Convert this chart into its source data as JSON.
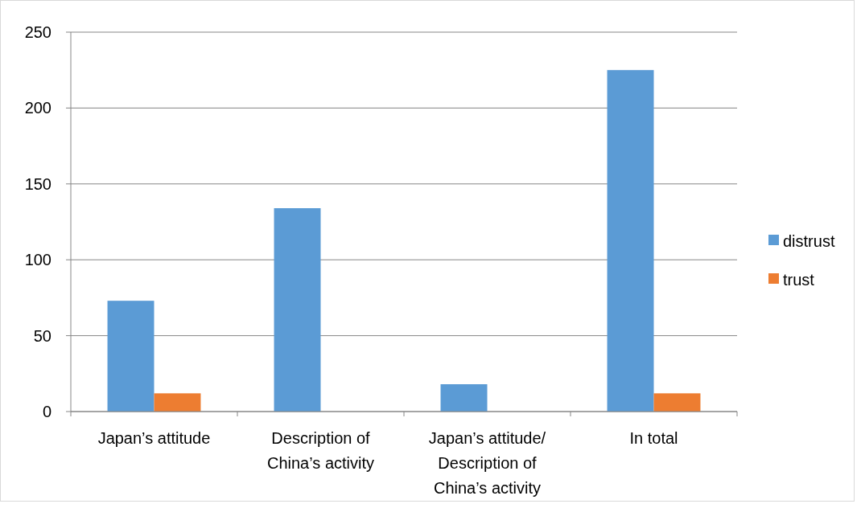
{
  "chart_data": {
    "type": "bar",
    "categories": [
      "Japan’s attitude",
      "Description of China’s activity",
      "Japan’s attitude/ Description of China’s activity",
      "In total"
    ],
    "series": [
      {
        "name": "distrust",
        "color": "#5b9bd5",
        "values": [
          73,
          134,
          18,
          225
        ]
      },
      {
        "name": "trust",
        "color": "#ed7d31",
        "values": [
          12,
          0,
          0,
          12
        ]
      }
    ],
    "ylim": [
      0,
      250
    ],
    "yticks": [
      0,
      50,
      100,
      150,
      200,
      250
    ],
    "grid": "y",
    "legend": "right"
  }
}
